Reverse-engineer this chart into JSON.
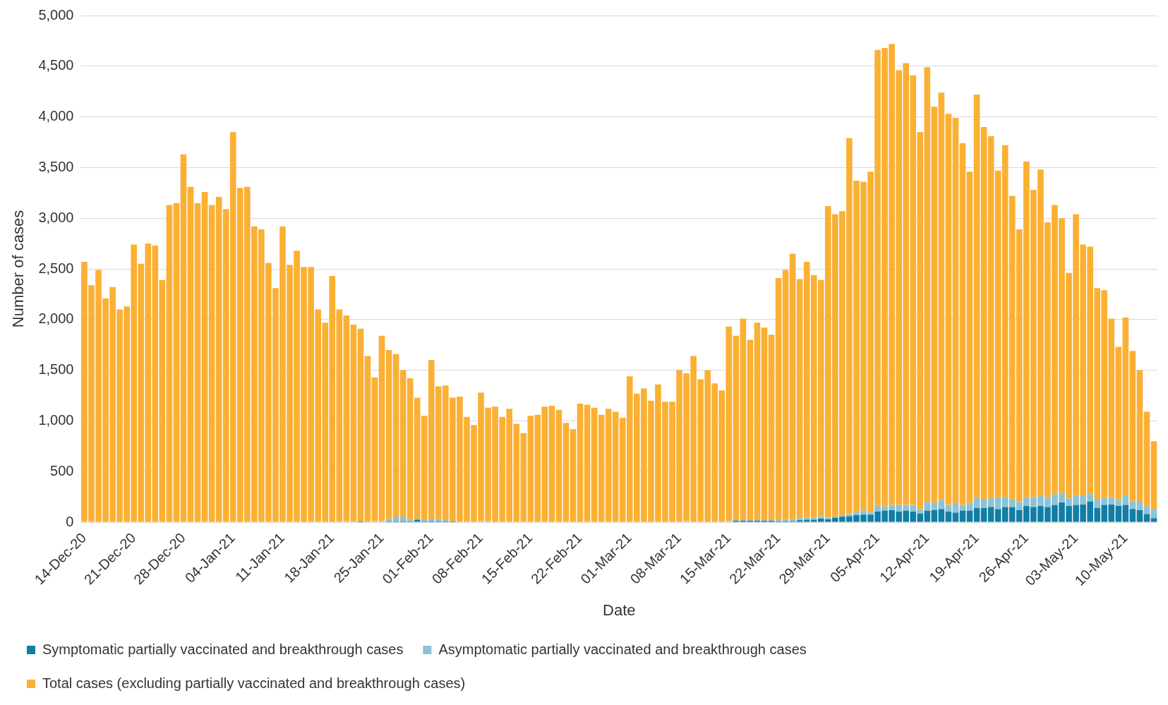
{
  "chart_data": {
    "type": "bar",
    "stacked": true,
    "xlabel": "Date",
    "ylabel": "Number of cases",
    "grid": "y",
    "legend": "bottom",
    "ylim": [
      0,
      5000
    ],
    "yticks": [
      0,
      500,
      {
        "value": 1000,
        "label": "1,000"
      },
      {
        "value": 1500,
        "label": "1,500"
      },
      {
        "value": 2000,
        "label": "2,000"
      },
      {
        "value": 2500,
        "label": "2,500"
      },
      {
        "value": 3000,
        "label": "3,000"
      },
      {
        "value": 3500,
        "label": "3,500"
      },
      {
        "value": 4000,
        "label": "4,000"
      },
      {
        "value": 4500,
        "label": "4,500"
      },
      {
        "value": 5000,
        "label": "5,000"
      }
    ],
    "categories": [
      "14-Dec-20",
      null,
      null,
      null,
      null,
      null,
      null,
      "21-Dec-20",
      null,
      null,
      null,
      null,
      null,
      null,
      "28-Dec-20",
      null,
      null,
      null,
      null,
      null,
      null,
      "04-Jan-21",
      null,
      null,
      null,
      null,
      null,
      null,
      "11-Jan-21",
      null,
      null,
      null,
      null,
      null,
      null,
      "18-Jan-21",
      null,
      null,
      null,
      null,
      null,
      null,
      "25-Jan-21",
      null,
      null,
      null,
      null,
      null,
      null,
      "01-Feb-21",
      null,
      null,
      null,
      null,
      null,
      null,
      "08-Feb-21",
      null,
      null,
      null,
      null,
      null,
      null,
      "15-Feb-21",
      null,
      null,
      null,
      null,
      null,
      null,
      "22-Feb-21",
      null,
      null,
      null,
      null,
      null,
      null,
      "01-Mar-21",
      null,
      null,
      null,
      null,
      null,
      null,
      "08-Mar-21",
      null,
      null,
      null,
      null,
      null,
      null,
      "15-Mar-21",
      null,
      null,
      null,
      null,
      null,
      null,
      "22-Mar-21",
      null,
      null,
      null,
      null,
      null,
      null,
      "29-Mar-21",
      null,
      null,
      null,
      null,
      null,
      null,
      "05-Apr-21",
      null,
      null,
      null,
      null,
      null,
      null,
      "12-Apr-21",
      null,
      null,
      null,
      null,
      null,
      null,
      "19-Apr-21",
      null,
      null,
      null,
      null,
      null,
      null,
      "26-Apr-21",
      null,
      null,
      null,
      null,
      null,
      null,
      "03-May-21",
      null,
      null,
      null,
      null,
      null,
      null,
      "10-May-21",
      null,
      null,
      null,
      null
    ],
    "series": [
      {
        "name": "Symptomatic partially vaccinated and breakthrough cases",
        "color": "#117ea6",
        "values": [
          0,
          0,
          0,
          0,
          0,
          0,
          0,
          0,
          0,
          0,
          0,
          0,
          0,
          0,
          0,
          0,
          0,
          0,
          0,
          0,
          0,
          0,
          0,
          0,
          0,
          0,
          0,
          0,
          0,
          0,
          0,
          0,
          0,
          0,
          0,
          0,
          0,
          0,
          0,
          10,
          0,
          0,
          0,
          10,
          10,
          10,
          10,
          25,
          10,
          10,
          10,
          10,
          10,
          0,
          0,
          0,
          0,
          0,
          0,
          0,
          0,
          0,
          0,
          0,
          0,
          0,
          0,
          0,
          0,
          0,
          0,
          0,
          0,
          0,
          0,
          0,
          0,
          0,
          0,
          0,
          0,
          0,
          0,
          0,
          0,
          0,
          0,
          0,
          0,
          0,
          0,
          0,
          15,
          15,
          15,
          15,
          15,
          15,
          10,
          10,
          10,
          20,
          25,
          25,
          35,
          30,
          45,
          55,
          60,
          70,
          75,
          75,
          105,
          115,
          120,
          105,
          115,
          105,
          85,
          115,
          120,
          130,
          105,
          95,
          115,
          115,
          140,
          140,
          150,
          130,
          150,
          150,
          120,
          160,
          150,
          160,
          150,
          170,
          195,
          160,
          170,
          175,
          205,
          140,
          170,
          175,
          160,
          170,
          130,
          120,
          80,
          40
        ]
      },
      {
        "name": "Asymptomatic partially vaccinated and breakthrough cases",
        "color": "#8cc3d6",
        "values": [
          0,
          0,
          0,
          0,
          0,
          0,
          0,
          0,
          0,
          0,
          0,
          0,
          0,
          0,
          0,
          0,
          0,
          0,
          0,
          0,
          0,
          0,
          0,
          0,
          0,
          0,
          0,
          0,
          0,
          0,
          0,
          0,
          0,
          0,
          0,
          0,
          0,
          10,
          10,
          0,
          0,
          10,
          10,
          20,
          45,
          45,
          10,
          10,
          10,
          25,
          20,
          10,
          0,
          0,
          0,
          0,
          10,
          10,
          0,
          0,
          0,
          0,
          0,
          0,
          0,
          0,
          0,
          0,
          0,
          0,
          0,
          0,
          0,
          0,
          0,
          0,
          0,
          0,
          0,
          0,
          0,
          0,
          0,
          0,
          0,
          10,
          0,
          0,
          0,
          0,
          0,
          10,
          5,
          5,
          5,
          5,
          5,
          5,
          10,
          15,
          20,
          20,
          20,
          20,
          25,
          15,
          10,
          15,
          20,
          30,
          40,
          25,
          55,
          40,
          50,
          65,
          55,
          65,
          45,
          85,
          70,
          90,
          65,
          95,
          55,
          75,
          105,
          90,
          85,
          115,
          100,
          75,
          80,
          85,
          95,
          100,
          95,
          105,
          95,
          75,
          90,
          90,
          80,
          90,
          70,
          70,
          60,
          95,
          75,
          90,
          75,
          90
        ]
      },
      {
        "name": "Total cases (excluding partially vaccinated and breakthrough cases)",
        "color": "#fbb034",
        "values": [
          2570,
          2340,
          2490,
          2210,
          2320,
          2100,
          2130,
          2740,
          2550,
          2750,
          2730,
          2390,
          3130,
          3150,
          3630,
          3310,
          3150,
          3260,
          3130,
          3210,
          3090,
          3850,
          3300,
          3310,
          2920,
          2890,
          2560,
          2310,
          2920,
          2540,
          2680,
          2520,
          2520,
          2100,
          1970,
          2430,
          2100,
          2030,
          1940,
          1900,
          1640,
          1420,
          1830,
          1670,
          1605,
          1445,
          1400,
          1195,
          1030,
          1565,
          1310,
          1330,
          1220,
          1240,
          1040,
          960,
          1270,
          1120,
          1140,
          1040,
          1120,
          970,
          880,
          1050,
          1060,
          1140,
          1150,
          1110,
          980,
          920,
          1170,
          1160,
          1130,
          1060,
          1120,
          1090,
          1030,
          1440,
          1270,
          1320,
          1200,
          1360,
          1190,
          1190,
          1500,
          1460,
          1640,
          1410,
          1500,
          1370,
          1300,
          1920,
          1820,
          1990,
          1780,
          1950,
          1900,
          1830,
          2390,
          2465,
          2620,
          2360,
          2525,
          2395,
          2330,
          3075,
          2985,
          3000,
          3710,
          3270,
          3245,
          3360,
          4500,
          4525,
          4550,
          4290,
          4360,
          4240,
          3720,
          4290,
          3910,
          4020,
          3860,
          3800,
          3570,
          3270,
          3975,
          3670,
          3575,
          3225,
          3470,
          2995,
          2690,
          3315,
          3035,
          3220,
          2715,
          2855,
          2710,
          2225,
          2780,
          2475,
          2435,
          2080,
          2050,
          1765,
          1510,
          1755,
          1485,
          1290,
          935,
          670
        ]
      }
    ]
  }
}
